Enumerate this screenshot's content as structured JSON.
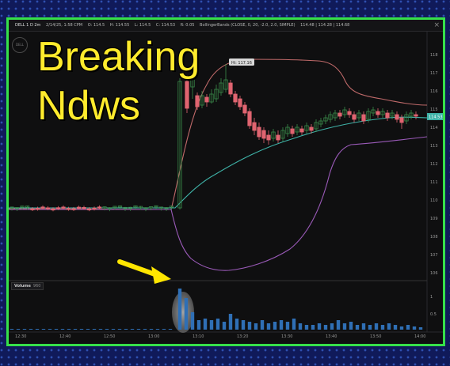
{
  "headline": {
    "line1": "Breaking",
    "line2": "Ndws"
  },
  "toolbar": {
    "symbol": "DELL 1 D 2m",
    "date": "2/14/25, 1:58 CPM",
    "open": "O: 114.5",
    "high": "H: 114.55",
    "low": "L: 114.5",
    "close": "C: 114.53",
    "change": "R: 0.05",
    "indicator": "BollingerBands (CLOSE, 0, 20, -2.0, 2.0, SIMPLE)",
    "bb_values": "114.48 | 114.28 | 114.68"
  },
  "hi_label": "Hi: 117.16",
  "price_tag": "114.53",
  "volume": {
    "label": "Volume",
    "value": "960"
  },
  "price_ticks": [
    "118",
    "117",
    "116",
    "115",
    "114",
    "113",
    "112",
    "111",
    "110",
    "109",
    "108",
    "107",
    "106"
  ],
  "volume_ticks": [
    "1",
    "0.5"
  ],
  "time_ticks": [
    "12:30",
    "12:40",
    "12:50",
    "13:00",
    "13:10",
    "13:20",
    "13:30",
    "13:40",
    "13:50",
    "14:00"
  ],
  "colors": {
    "up": "#3a8a4a",
    "down": "#e06470",
    "bb_upper": "#c06a6a",
    "bb_mid": "#3fb3a8",
    "bb_lower": "#9a5ab8",
    "volume": "#2f6fb5",
    "arrow": "#ffe600",
    "frame": "#36e04a"
  }
}
